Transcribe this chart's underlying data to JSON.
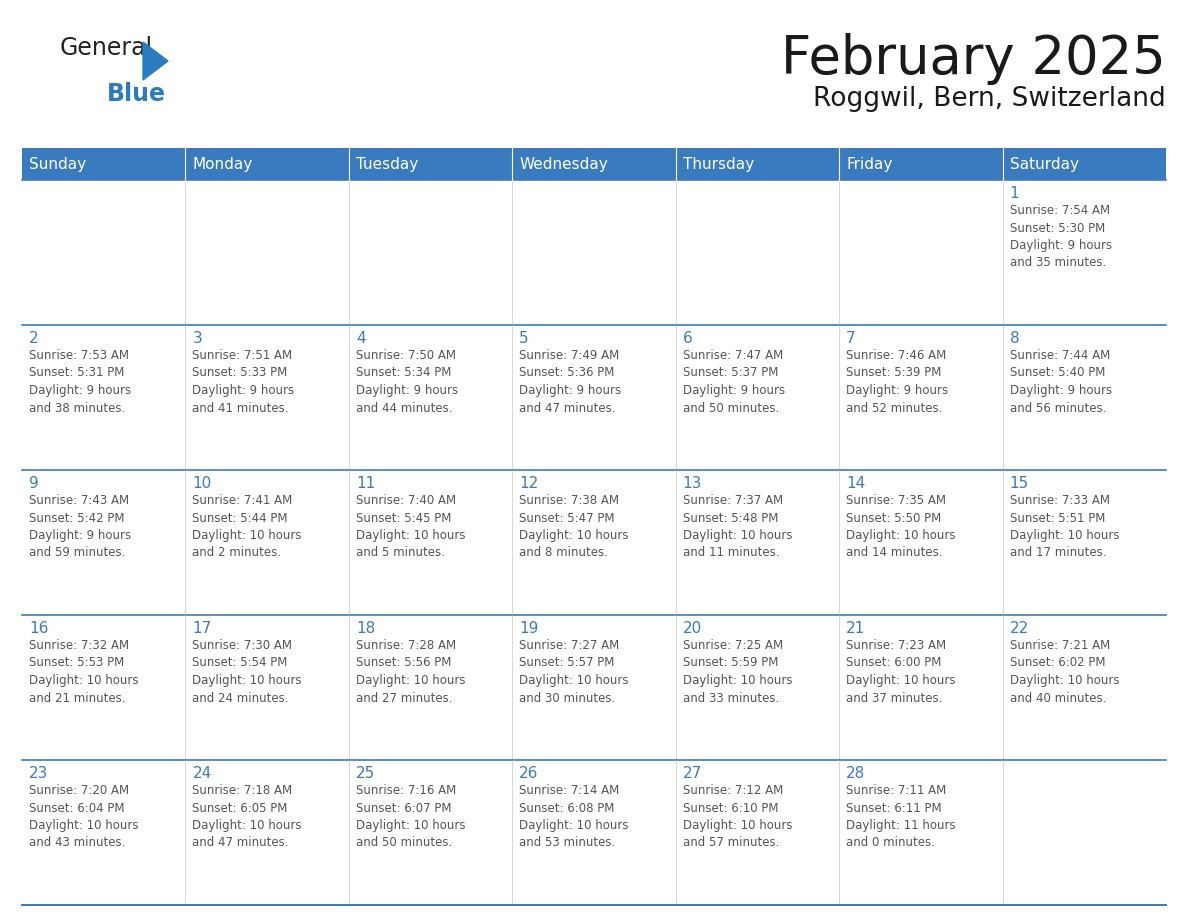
{
  "title": "February 2025",
  "subtitle": "Roggwil, Bern, Switzerland",
  "days_of_week": [
    "Sunday",
    "Monday",
    "Tuesday",
    "Wednesday",
    "Thursday",
    "Friday",
    "Saturday"
  ],
  "header_bg": "#3a7bbf",
  "header_text": "#ffffff",
  "row_border_color": "#3a7bbf",
  "cell_bg_normal": "#ffffff",
  "cell_bg_alt": "#f0f4f8",
  "day_num_color": "#3a7bbf",
  "info_text_color": "#555555",
  "title_color": "#1a1a1a",
  "subtitle_color": "#1a1a1a",
  "logo_general_color": "#222222",
  "logo_blue_color": "#2b7bbf",
  "fig_width": 11.88,
  "fig_height": 9.18,
  "weeks": [
    [
      {
        "day": null,
        "info": ""
      },
      {
        "day": null,
        "info": ""
      },
      {
        "day": null,
        "info": ""
      },
      {
        "day": null,
        "info": ""
      },
      {
        "day": null,
        "info": ""
      },
      {
        "day": null,
        "info": ""
      },
      {
        "day": 1,
        "info": "Sunrise: 7:54 AM\nSunset: 5:30 PM\nDaylight: 9 hours\nand 35 minutes."
      }
    ],
    [
      {
        "day": 2,
        "info": "Sunrise: 7:53 AM\nSunset: 5:31 PM\nDaylight: 9 hours\nand 38 minutes."
      },
      {
        "day": 3,
        "info": "Sunrise: 7:51 AM\nSunset: 5:33 PM\nDaylight: 9 hours\nand 41 minutes."
      },
      {
        "day": 4,
        "info": "Sunrise: 7:50 AM\nSunset: 5:34 PM\nDaylight: 9 hours\nand 44 minutes."
      },
      {
        "day": 5,
        "info": "Sunrise: 7:49 AM\nSunset: 5:36 PM\nDaylight: 9 hours\nand 47 minutes."
      },
      {
        "day": 6,
        "info": "Sunrise: 7:47 AM\nSunset: 5:37 PM\nDaylight: 9 hours\nand 50 minutes."
      },
      {
        "day": 7,
        "info": "Sunrise: 7:46 AM\nSunset: 5:39 PM\nDaylight: 9 hours\nand 52 minutes."
      },
      {
        "day": 8,
        "info": "Sunrise: 7:44 AM\nSunset: 5:40 PM\nDaylight: 9 hours\nand 56 minutes."
      }
    ],
    [
      {
        "day": 9,
        "info": "Sunrise: 7:43 AM\nSunset: 5:42 PM\nDaylight: 9 hours\nand 59 minutes."
      },
      {
        "day": 10,
        "info": "Sunrise: 7:41 AM\nSunset: 5:44 PM\nDaylight: 10 hours\nand 2 minutes."
      },
      {
        "day": 11,
        "info": "Sunrise: 7:40 AM\nSunset: 5:45 PM\nDaylight: 10 hours\nand 5 minutes."
      },
      {
        "day": 12,
        "info": "Sunrise: 7:38 AM\nSunset: 5:47 PM\nDaylight: 10 hours\nand 8 minutes."
      },
      {
        "day": 13,
        "info": "Sunrise: 7:37 AM\nSunset: 5:48 PM\nDaylight: 10 hours\nand 11 minutes."
      },
      {
        "day": 14,
        "info": "Sunrise: 7:35 AM\nSunset: 5:50 PM\nDaylight: 10 hours\nand 14 minutes."
      },
      {
        "day": 15,
        "info": "Sunrise: 7:33 AM\nSunset: 5:51 PM\nDaylight: 10 hours\nand 17 minutes."
      }
    ],
    [
      {
        "day": 16,
        "info": "Sunrise: 7:32 AM\nSunset: 5:53 PM\nDaylight: 10 hours\nand 21 minutes."
      },
      {
        "day": 17,
        "info": "Sunrise: 7:30 AM\nSunset: 5:54 PM\nDaylight: 10 hours\nand 24 minutes."
      },
      {
        "day": 18,
        "info": "Sunrise: 7:28 AM\nSunset: 5:56 PM\nDaylight: 10 hours\nand 27 minutes."
      },
      {
        "day": 19,
        "info": "Sunrise: 7:27 AM\nSunset: 5:57 PM\nDaylight: 10 hours\nand 30 minutes."
      },
      {
        "day": 20,
        "info": "Sunrise: 7:25 AM\nSunset: 5:59 PM\nDaylight: 10 hours\nand 33 minutes."
      },
      {
        "day": 21,
        "info": "Sunrise: 7:23 AM\nSunset: 6:00 PM\nDaylight: 10 hours\nand 37 minutes."
      },
      {
        "day": 22,
        "info": "Sunrise: 7:21 AM\nSunset: 6:02 PM\nDaylight: 10 hours\nand 40 minutes."
      }
    ],
    [
      {
        "day": 23,
        "info": "Sunrise: 7:20 AM\nSunset: 6:04 PM\nDaylight: 10 hours\nand 43 minutes."
      },
      {
        "day": 24,
        "info": "Sunrise: 7:18 AM\nSunset: 6:05 PM\nDaylight: 10 hours\nand 47 minutes."
      },
      {
        "day": 25,
        "info": "Sunrise: 7:16 AM\nSunset: 6:07 PM\nDaylight: 10 hours\nand 50 minutes."
      },
      {
        "day": 26,
        "info": "Sunrise: 7:14 AM\nSunset: 6:08 PM\nDaylight: 10 hours\nand 53 minutes."
      },
      {
        "day": 27,
        "info": "Sunrise: 7:12 AM\nSunset: 6:10 PM\nDaylight: 10 hours\nand 57 minutes."
      },
      {
        "day": 28,
        "info": "Sunrise: 7:11 AM\nSunset: 6:11 PM\nDaylight: 11 hours\nand 0 minutes."
      },
      {
        "day": null,
        "info": ""
      }
    ]
  ]
}
